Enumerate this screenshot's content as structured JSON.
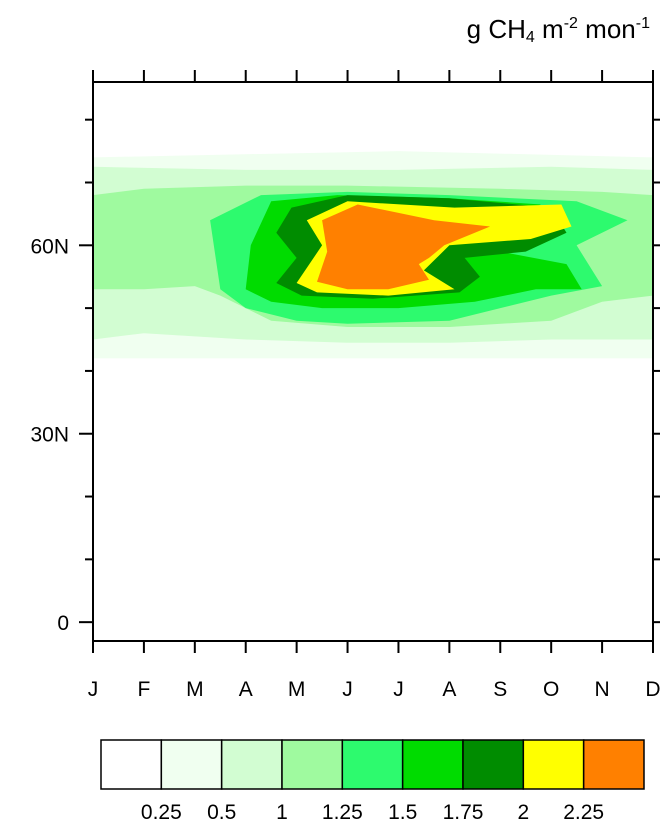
{
  "chart_data": {
    "type": "heatmap",
    "units": {
      "base": "g CH",
      "sub": "4",
      "mid": " m",
      "sup1": "-2",
      "tail": " mon",
      "sup2": "-1"
    },
    "x_tick_labels": [
      "J",
      "F",
      "M",
      "A",
      "M",
      "J",
      "J",
      "A",
      "S",
      "O",
      "N",
      "D"
    ],
    "y_range": [
      -3,
      86
    ],
    "y_ticks": [
      {
        "value": 0,
        "label": "0"
      },
      {
        "value": 30,
        "label": "30N"
      },
      {
        "value": 60,
        "label": "60N"
      }
    ],
    "levels": [
      0.25,
      0.5,
      1,
      1.25,
      1.5,
      1.75,
      2,
      2.25
    ],
    "level_labels": [
      "0.25",
      "0.5",
      "1",
      "1.25",
      "1.5",
      "1.75",
      "2",
      "2.25"
    ],
    "colors": [
      "#ffffff",
      "#f0fff0",
      "#d2fdd2",
      "#9ffa9f",
      "#2dfa6e",
      "#00dc00",
      "#008c00",
      "#ffff00",
      "#ff8000"
    ],
    "lat_bands": [
      {
        "level": 1,
        "points": [
          [
            1,
            42
          ],
          [
            12,
            42
          ],
          [
            12,
            74
          ],
          [
            7,
            75
          ],
          [
            1,
            74
          ]
        ]
      },
      {
        "level": 2,
        "points": [
          [
            1,
            45
          ],
          [
            2,
            46
          ],
          [
            4,
            45
          ],
          [
            6,
            44.5
          ],
          [
            8,
            44.5
          ],
          [
            10,
            45
          ],
          [
            12,
            45
          ],
          [
            12,
            72
          ],
          [
            10,
            72.5
          ],
          [
            7,
            72
          ],
          [
            4,
            72
          ],
          [
            1,
            72.5
          ]
        ]
      },
      {
        "level": 3,
        "points": [
          [
            1,
            53
          ],
          [
            2,
            53
          ],
          [
            3,
            53.5
          ],
          [
            3.5,
            52
          ],
          [
            4.5,
            48
          ],
          [
            6,
            47
          ],
          [
            8,
            47
          ],
          [
            10,
            48
          ],
          [
            11,
            51
          ],
          [
            12,
            52
          ],
          [
            12,
            68
          ],
          [
            11,
            68.5
          ],
          [
            9,
            69
          ],
          [
            6,
            69.5
          ],
          [
            4,
            69.5
          ],
          [
            2,
            69
          ],
          [
            1,
            68
          ]
        ]
      },
      {
        "level": 4,
        "points": [
          [
            3.5,
            53
          ],
          [
            4,
            50
          ],
          [
            5,
            48
          ],
          [
            6,
            47.5
          ],
          [
            8,
            48
          ],
          [
            9,
            50
          ],
          [
            10,
            52
          ],
          [
            11,
            53.5
          ],
          [
            10.5,
            60
          ],
          [
            11.5,
            64
          ],
          [
            10.5,
            67
          ],
          [
            8,
            68
          ],
          [
            6,
            68.5
          ],
          [
            4.3,
            68
          ],
          [
            3.3,
            64
          ]
        ]
      },
      {
        "level": 5,
        "points": [
          [
            4,
            53
          ],
          [
            4.5,
            51
          ],
          [
            5.5,
            50
          ],
          [
            7,
            50
          ],
          [
            8.5,
            51
          ],
          [
            9.7,
            53
          ],
          [
            10.6,
            53
          ],
          [
            10.3,
            57
          ],
          [
            9,
            59
          ],
          [
            8.5,
            62
          ],
          [
            9.8,
            66.5
          ],
          [
            8,
            67.5
          ],
          [
            5.8,
            68
          ],
          [
            4.5,
            67
          ],
          [
            4.1,
            60
          ]
        ]
      },
      {
        "level": 6,
        "points": [
          [
            4.6,
            54
          ],
          [
            5.1,
            52
          ],
          [
            6.5,
            51.5
          ],
          [
            8.2,
            52.5
          ],
          [
            8.6,
            55
          ],
          [
            8.3,
            58
          ],
          [
            9.5,
            59
          ],
          [
            10.3,
            62
          ],
          [
            10,
            66
          ],
          [
            8,
            67.5
          ],
          [
            6,
            68
          ],
          [
            4.9,
            66
          ],
          [
            4.6,
            62
          ],
          [
            5,
            58
          ]
        ]
      },
      {
        "level": 7,
        "points": [
          [
            5,
            54
          ],
          [
            5.4,
            52.5
          ],
          [
            6.8,
            52
          ],
          [
            8.1,
            53
          ],
          [
            7.5,
            56
          ],
          [
            8,
            60
          ],
          [
            9.6,
            61
          ],
          [
            10.4,
            63
          ],
          [
            10.2,
            66.5
          ],
          [
            8.1,
            66
          ],
          [
            6,
            67
          ],
          [
            5.2,
            64
          ],
          [
            5.5,
            60
          ]
        ]
      },
      {
        "level": 8,
        "points": [
          [
            5.4,
            54.2
          ],
          [
            6,
            53
          ],
          [
            6.8,
            53
          ],
          [
            7.6,
            54.5
          ],
          [
            7.4,
            57
          ],
          [
            7.6,
            58
          ],
          [
            7.9,
            60
          ],
          [
            8.8,
            63
          ],
          [
            7.7,
            64
          ],
          [
            6.2,
            66.5
          ],
          [
            5.5,
            64
          ],
          [
            5.6,
            59
          ]
        ]
      }
    ]
  }
}
